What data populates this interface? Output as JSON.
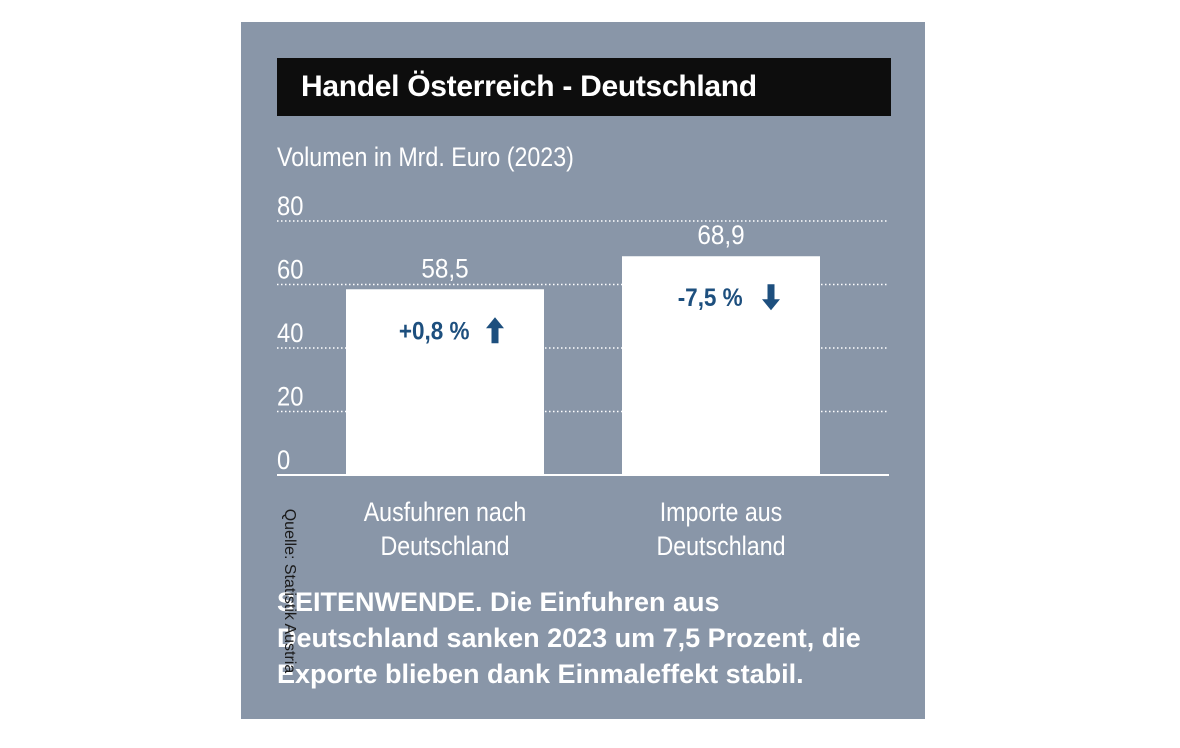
{
  "title": "Handel Österreich - Deutschland",
  "subtitle": "Volumen in Mrd. Euro (2023)",
  "caption": "SEITENWENDE. Die Einfuhren aus Deutschland sanken 2023 um 7,5 Prozent, die Exporte blieben dank Einmaleffekt stabil.",
  "source": "Quelle: Statistik Austria",
  "colors": {
    "panel": "#8996a8",
    "bar": "#ffffff",
    "accent": "#1d4f7e",
    "title_bg": "#0d0d0d"
  },
  "chart_data": {
    "type": "bar",
    "title": "Handel Österreich - Deutschland",
    "ylabel": "Volumen in Mrd. Euro (2023)",
    "ylim": [
      0,
      80
    ],
    "yticks": [
      "80",
      "60",
      "40",
      "20",
      "0"
    ],
    "grid": true,
    "categories": [
      {
        "line1": "Ausfuhren nach",
        "line2": "Deutschland"
      },
      {
        "line1": "Importe aus",
        "line2": "Deutschland"
      }
    ],
    "values": [
      58.5,
      68.9
    ],
    "value_labels": [
      "58,5",
      "68,9"
    ],
    "changes": [
      {
        "text": "+0,8 %",
        "direction": "up"
      },
      {
        "text": "-7,5 %",
        "direction": "down"
      }
    ]
  }
}
